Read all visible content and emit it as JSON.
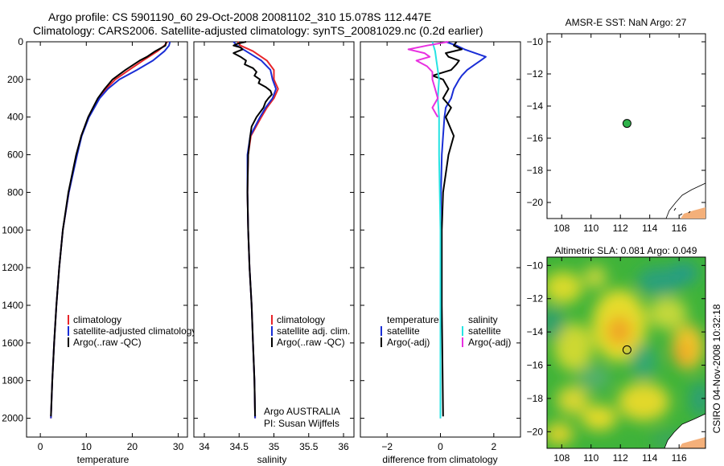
{
  "title_line1": "Argo profile: CS 5901190_60 29-Oct-2008 20081102_310 15.078S 112.447E",
  "title_line2": "Climatology: CARS2006. Satellite-adjusted climatology: synTS_20081029.nc (0.2d earlier)",
  "footer_stamp": "CSIRO 04-Nov-2008 10:32:18",
  "colors": {
    "red": "#e8252a",
    "blue": "#1a2ed6",
    "black": "#000000",
    "cyan": "#27e3e3",
    "magenta": "#e830e0",
    "land": "#f4b07a"
  },
  "chart_data": [
    {
      "type": "line",
      "panel": "temperature",
      "xlabel": "temperature",
      "xlim": [
        -3,
        32
      ],
      "ylim": [
        2100,
        0
      ],
      "xticks": [
        0,
        10,
        20,
        30
      ],
      "yticks": [
        0,
        200,
        400,
        600,
        800,
        1000,
        1200,
        1400,
        1600,
        1800,
        2000
      ],
      "legend": [
        "climatology",
        "satellite-adjusted climatology",
        "Argo(..raw -QC)"
      ],
      "series": [
        {
          "name": "climatology",
          "color": "red",
          "depth": [
            0,
            20,
            50,
            100,
            150,
            200,
            250,
            300,
            400,
            500,
            600,
            800,
            1000,
            1200,
            1400,
            1600,
            1800,
            2000
          ],
          "values": [
            27.6,
            27.0,
            25.5,
            22.3,
            19.3,
            16.3,
            14.3,
            12.6,
            10.5,
            8.9,
            7.9,
            6.2,
            4.9,
            4.1,
            3.5,
            3.0,
            2.6,
            2.3
          ]
        },
        {
          "name": "satellite-adjusted climatology",
          "color": "blue",
          "depth": [
            0,
            20,
            50,
            100,
            150,
            200,
            250,
            300,
            400,
            500,
            600,
            800,
            1000,
            1200,
            1400,
            1600,
            1800,
            2000
          ],
          "values": [
            28.2,
            28.0,
            27.0,
            24.5,
            21.0,
            17.2,
            14.7,
            12.9,
            10.6,
            9.0,
            8.0,
            6.2,
            4.9,
            4.1,
            3.5,
            3.0,
            2.6,
            2.3
          ]
        },
        {
          "name": "Argo(..raw -QC)",
          "color": "black",
          "depth": [
            0,
            20,
            50,
            80,
            100,
            150,
            200,
            250,
            300,
            400,
            500,
            600,
            800,
            1000,
            1200,
            1400,
            1600,
            1800,
            1990
          ],
          "values": [
            27.4,
            27.2,
            25.0,
            23.2,
            21.6,
            18.5,
            15.7,
            14.0,
            12.5,
            10.4,
            8.9,
            7.8,
            6.1,
            4.9,
            4.1,
            3.5,
            3.0,
            2.6,
            2.3
          ]
        }
      ]
    },
    {
      "type": "line",
      "panel": "salinity",
      "xlabel": "salinity",
      "xlim": [
        33.85,
        36.15
      ],
      "ylim": [
        2100,
        0
      ],
      "xticks": [
        34,
        34.5,
        35,
        35.5,
        36
      ],
      "legend": [
        "climatology",
        "satellite adj. clim.",
        "Argo(..raw -QC)"
      ],
      "annotation": [
        "Argo AUSTRALIA",
        "PI: Susan Wijffels"
      ],
      "series": [
        {
          "name": "climatology",
          "color": "red",
          "depth": [
            0,
            20,
            50,
            100,
            150,
            200,
            250,
            300,
            350,
            400,
            500,
            600,
            800,
            1000,
            1200,
            1400,
            1600,
            1800,
            2000
          ],
          "values": [
            34.48,
            34.52,
            34.7,
            34.9,
            35.0,
            35.0,
            35.06,
            35.0,
            34.9,
            34.82,
            34.67,
            34.63,
            34.62,
            34.63,
            34.65,
            34.68,
            34.7,
            34.72,
            34.73
          ]
        },
        {
          "name": "satellite adj. clim.",
          "color": "blue",
          "depth": [
            0,
            20,
            50,
            100,
            150,
            200,
            250,
            300,
            350,
            400,
            500,
            600,
            800,
            1000,
            1200,
            1400,
            1600,
            1800,
            2000
          ],
          "values": [
            34.42,
            34.47,
            34.6,
            34.82,
            34.95,
            34.98,
            35.03,
            34.98,
            34.88,
            34.8,
            34.66,
            34.62,
            34.62,
            34.63,
            34.65,
            34.68,
            34.7,
            34.72,
            34.73
          ]
        },
        {
          "name": "Argo(..raw -QC)",
          "color": "black",
          "depth": [
            0,
            10,
            20,
            30,
            40,
            60,
            80,
            100,
            120,
            140,
            160,
            180,
            200,
            220,
            240,
            260,
            280,
            300,
            320,
            350,
            400,
            450,
            500,
            600,
            800,
            1000,
            1200,
            1400,
            1600,
            1800,
            1990
          ],
          "values": [
            34.6,
            34.48,
            34.42,
            34.52,
            34.55,
            34.42,
            34.52,
            34.6,
            34.58,
            34.7,
            34.75,
            34.72,
            34.8,
            34.78,
            34.88,
            34.95,
            34.97,
            34.92,
            34.88,
            34.85,
            34.75,
            34.68,
            34.66,
            34.63,
            34.62,
            34.63,
            34.65,
            34.68,
            34.7,
            34.72,
            34.73
          ]
        }
      ]
    },
    {
      "type": "line",
      "panel": "difference",
      "xlabel": "difference from climatology",
      "xlim": [
        -3,
        3
      ],
      "ylim": [
        2100,
        0
      ],
      "xticks": [
        -2,
        0,
        2
      ],
      "legend_left": {
        "heading": "temperature",
        "items": [
          "satellite",
          "Argo(-adj)"
        ]
      },
      "legend_right": {
        "heading": "salinity",
        "items": [
          "satellite",
          "Argo(-adj)"
        ]
      },
      "series": [
        {
          "name": "temperature satellite",
          "color": "blue",
          "depth": [
            0,
            20,
            40,
            60,
            80,
            100,
            120,
            150,
            180,
            200,
            250,
            300,
            350,
            400,
            500,
            600,
            800,
            1000,
            1400,
            2000
          ],
          "values": [
            0.2,
            0.6,
            0.9,
            1.3,
            1.7,
            1.5,
            1.3,
            1.0,
            0.8,
            0.7,
            0.5,
            0.4,
            0.2,
            0.15,
            0.1,
            0.05,
            0.02,
            0.0,
            0.0,
            0.0
          ]
        },
        {
          "name": "temperature Argo(-adj)",
          "color": "black",
          "depth": [
            0,
            20,
            40,
            60,
            80,
            100,
            120,
            150,
            180,
            200,
            250,
            300,
            350,
            400,
            500,
            600,
            800,
            1000,
            1400,
            1990
          ],
          "values": [
            0.6,
            0.5,
            0.8,
            0.2,
            0.3,
            0.7,
            0.6,
            0.4,
            -0.3,
            0.1,
            0.3,
            0.1,
            0.4,
            0.2,
            0.5,
            0.3,
            0.1,
            0.05,
            0.05,
            0.1
          ]
        },
        {
          "name": "salinity satellite",
          "color": "cyan",
          "depth": [
            0,
            50,
            100,
            150,
            200,
            300,
            400,
            600,
            1000,
            1400,
            2000
          ],
          "values": [
            -0.3,
            -0.2,
            -0.15,
            -0.1,
            -0.05,
            -0.1,
            -0.05,
            -0.05,
            0.0,
            0.0,
            0.0
          ]
        },
        {
          "name": "salinity Argo(-adj)",
          "color": "magenta",
          "depth": [
            0,
            20,
            40,
            60,
            80,
            100,
            130,
            160,
            200,
            250,
            300,
            350,
            400
          ],
          "values": [
            0.3,
            -0.5,
            -1.2,
            -0.6,
            -0.4,
            -0.9,
            -0.5,
            -0.3,
            -0.3,
            -0.2,
            -0.1,
            -0.3,
            -0.1
          ]
        }
      ]
    },
    {
      "type": "scatter",
      "panel": "map_sst",
      "title": "AMSR-E SST: NaN Argo: 27",
      "xlim": [
        107,
        117.8
      ],
      "ylim": [
        -21,
        -9.5
      ],
      "xticks": [
        108,
        110,
        112,
        114,
        116
      ],
      "yticks": [
        -10,
        -12,
        -14,
        -16,
        -18,
        -20
      ],
      "marker": {
        "lon": 112.447,
        "lat": -15.078
      }
    },
    {
      "type": "heatmap",
      "panel": "map_sla",
      "title": "Altimetric SLA: 0.081 Argo: 0.049",
      "xlim": [
        107,
        117.8
      ],
      "ylim": [
        -21,
        -9.5
      ],
      "xticks": [
        108,
        110,
        112,
        114,
        116
      ],
      "yticks": [
        -10,
        -12,
        -14,
        -16,
        -18,
        -20
      ],
      "marker": {
        "lon": 112.447,
        "lat": -15.078
      }
    }
  ]
}
